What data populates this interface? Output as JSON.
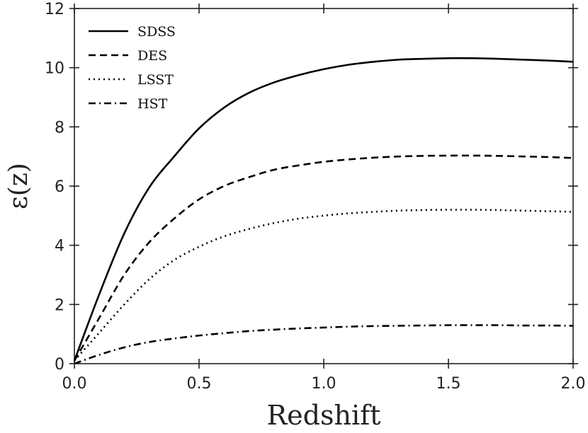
{
  "chart_data": {
    "type": "line",
    "xlabel": "Redshift",
    "ylabel": "ε(z)",
    "xlim": [
      0,
      2.0
    ],
    "ylim": [
      0,
      12
    ],
    "xticks": [
      0.0,
      0.5,
      1.0,
      1.5,
      2.0
    ],
    "xtick_labels": [
      "0.0",
      "0.5",
      "1.0",
      "1.5",
      "2.0"
    ],
    "yticks": [
      0,
      2,
      4,
      6,
      8,
      10,
      12
    ],
    "ytick_labels": [
      "0",
      "2",
      "4",
      "6",
      "8",
      "10",
      "12"
    ],
    "grid": false,
    "legend_position": "top-left",
    "x": [
      0.0,
      0.1,
      0.2,
      0.3,
      0.4,
      0.5,
      0.6,
      0.7,
      0.8,
      0.9,
      1.0,
      1.1,
      1.2,
      1.3,
      1.4,
      1.5,
      1.6,
      1.7,
      1.8,
      1.9,
      2.0
    ],
    "series": [
      {
        "name": "SDSS",
        "style": "solid",
        "values": [
          0.1,
          2.35,
          4.4,
          5.95,
          7.0,
          7.95,
          8.65,
          9.15,
          9.5,
          9.75,
          9.95,
          10.1,
          10.2,
          10.27,
          10.3,
          10.32,
          10.32,
          10.3,
          10.27,
          10.24,
          10.2
        ]
      },
      {
        "name": "DES",
        "style": "dashed",
        "values": [
          0.1,
          1.55,
          3.0,
          4.1,
          4.9,
          5.55,
          6.0,
          6.3,
          6.55,
          6.7,
          6.82,
          6.9,
          6.96,
          7.0,
          7.02,
          7.03,
          7.03,
          7.02,
          7.0,
          6.98,
          6.95
        ]
      },
      {
        "name": "LSST",
        "style": "dotted",
        "values": [
          0.1,
          1.05,
          2.0,
          2.85,
          3.5,
          3.95,
          4.3,
          4.55,
          4.75,
          4.9,
          5.0,
          5.08,
          5.13,
          5.17,
          5.19,
          5.2,
          5.2,
          5.19,
          5.17,
          5.15,
          5.13
        ]
      },
      {
        "name": "HST",
        "style": "dashdot",
        "values": [
          0.0,
          0.3,
          0.55,
          0.73,
          0.85,
          0.95,
          1.03,
          1.1,
          1.15,
          1.19,
          1.22,
          1.25,
          1.27,
          1.28,
          1.29,
          1.3,
          1.3,
          1.3,
          1.29,
          1.29,
          1.28
        ]
      }
    ]
  }
}
